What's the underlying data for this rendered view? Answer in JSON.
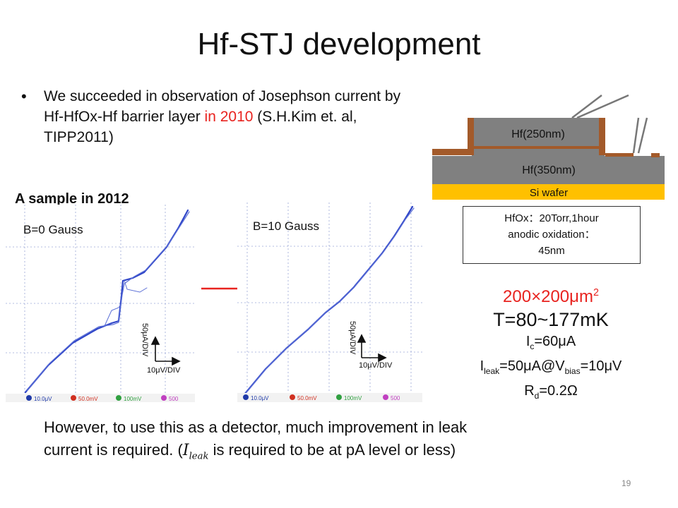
{
  "slide": {
    "title": "Hf-STJ development",
    "page_number": "19"
  },
  "bullet": {
    "marker": "•",
    "text_part1": "We succeeded in observation of Josephson current by Hf-HfOx-Hf barrier layer ",
    "text_red": "in 2010",
    "text_part2": " (S.H.Kim et. al, TIPP2011)"
  },
  "sample": {
    "heading": "A sample in 2012",
    "plot1_label": "B=0 Gauss",
    "plot2_label": "B=10 Gauss",
    "plot_y_scale": "50μA/DIV",
    "plot_x_scale": "10μV/DIV",
    "plot_footer": [
      "10.0μV",
      "50.0mV",
      "100mV",
      "500"
    ]
  },
  "stack": {
    "hf_top": "Hf(250nm)",
    "hf_bottom": "Hf(350nm)",
    "substrate": "Si wafer",
    "hfox_line1": "HfOx：20Torr,1hour",
    "hfox_line2": "anodic oxidation：",
    "hfox_line3": "45nm"
  },
  "specs": {
    "area_base": "200×200μm",
    "area_sup": "2",
    "temperature": "T=80~177mK",
    "ic_main": "I",
    "ic_sub": "c",
    "ic_val": "=60μA",
    "leak_main": "I",
    "leak_sub": "leak",
    "leak_mid": "=50μA@V",
    "leak_bias_sub": "bias",
    "leak_end": "=10μV",
    "rd_main": "R",
    "rd_sub": "d",
    "rd_val": "=0.2Ω"
  },
  "bottom": {
    "line1": "However, to use this as a detector,  much improvement in leak",
    "line2_a": "current is required.  (",
    "line2_i": "I",
    "line2_sub": "leak",
    "line2_b": " is required to be at pA level or less)"
  },
  "colors": {
    "accent_red": "#e8231f",
    "curve_blue": "#2f45c8",
    "hf_gray": "#808080",
    "contact_brown": "#a35a2a",
    "wafer_yellow": "#ffc000"
  }
}
